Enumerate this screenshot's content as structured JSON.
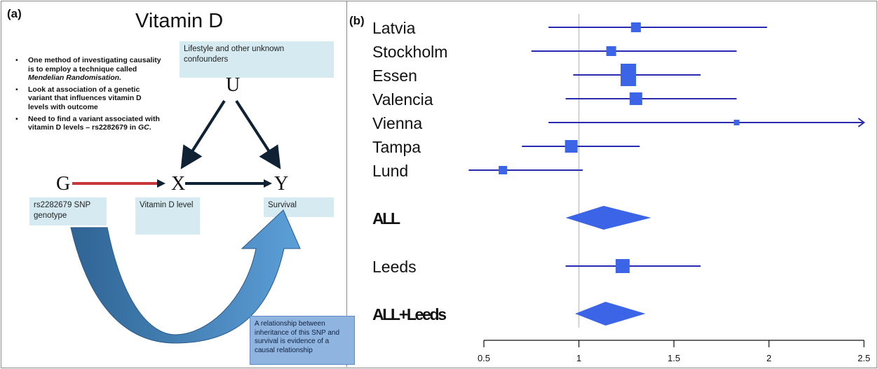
{
  "panel_a": {
    "label": "(a)",
    "title": "Vitamin D",
    "bullets": [
      {
        "text": "One method of investigating causality is to employ a technique called ",
        "italic": "Mendelian Randomisation.",
        "after": ""
      },
      {
        "text": "Look at association of a genetic variant that influences vitamin D levels with outcome",
        "italic": "",
        "after": ""
      },
      {
        "text": "Need to find a variant associated with vitamin D levels – rs2282679 in ",
        "italic": "GC",
        "after": "."
      }
    ],
    "bullet_char": "•",
    "nodes": {
      "u": "U",
      "g": "G",
      "x": "X",
      "y": "Y"
    },
    "boxes": {
      "confounders": "Lifestyle and other unknown confounders",
      "genotype": "rs2282679 SNP genotype",
      "vitd": "Vitamin D level",
      "survival": "Survival"
    },
    "conclusion": "A relationship between inheritance of this SNP and survival is evidence of a causal relationship",
    "colors": {
      "red_arrow": "#c8373a",
      "dark_arrow": "#0e2234",
      "curve_dark": "#2f6494",
      "curve_light": "#5c9fd8",
      "box_fill": "#d6ebf1"
    }
  },
  "panel_b": {
    "label": "(b)"
  },
  "chart_data": {
    "type": "forest",
    "xlim": [
      0.5,
      2.5
    ],
    "x_ticks": [
      "0.5",
      "1",
      "1.5",
      "2",
      "2.5"
    ],
    "reference_line": 1,
    "studies": [
      {
        "name": "Latvia",
        "estimate": 1.3,
        "lower": 0.84,
        "upper": 1.99,
        "bold": false
      },
      {
        "name": "Stockholm",
        "estimate": 1.17,
        "lower": 0.75,
        "upper": 1.83,
        "bold": false
      },
      {
        "name": "Essen",
        "estimate": 1.26,
        "lower": 0.97,
        "upper": 1.64,
        "bold": false
      },
      {
        "name": "Valencia",
        "estimate": 1.3,
        "lower": 0.93,
        "upper": 1.83,
        "bold": false
      },
      {
        "name": "Vienna",
        "estimate": 1.83,
        "lower": 0.84,
        "upper": 2.5,
        "bold": false,
        "arrow": true
      },
      {
        "name": "Tampa",
        "estimate": 0.96,
        "lower": 0.7,
        "upper": 1.32,
        "bold": false
      },
      {
        "name": "Lund",
        "estimate": 0.6,
        "lower": 0.42,
        "upper": 1.02,
        "bold": false
      },
      {
        "name": "ALL",
        "estimate": 1.13,
        "lower": 0.93,
        "upper": 1.38,
        "bold": true,
        "diamond": true
      },
      {
        "name": "Leeds",
        "estimate": 1.23,
        "lower": 0.93,
        "upper": 1.64,
        "bold": false
      },
      {
        "name": "ALL+Leeds",
        "estimate": 1.14,
        "lower": 0.98,
        "upper": 1.35,
        "bold": true,
        "diamond": true
      }
    ],
    "colors": {
      "line": "#2a2ab0",
      "marker": "#3c64e6",
      "ref_line": "#bbbbbb"
    }
  }
}
